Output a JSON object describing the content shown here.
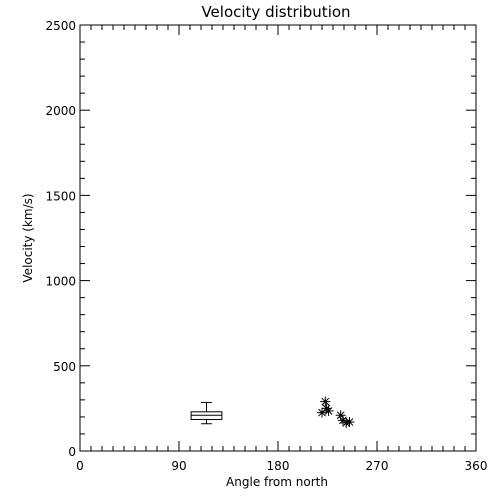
{
  "chart_data": {
    "type": "scatter",
    "title": "Velocity distribution",
    "xlabel": "Angle from north",
    "ylabel": "Velocity (km/s)",
    "xlim": [
      0,
      360
    ],
    "ylim": [
      0,
      2500
    ],
    "xticks": [
      0,
      90,
      180,
      270,
      360
    ],
    "yticks": [
      0,
      500,
      1000,
      1500,
      2000,
      2500
    ],
    "x_minor_interval": 10,
    "y_minor_interval": 100,
    "grid": false,
    "legend": "none",
    "colors": {
      "foreground": "#000000",
      "background": "#ffffff"
    },
    "boxplot": {
      "x": 115,
      "half_width_degrees": 14,
      "whisker_low": 160,
      "q1": 185,
      "median": 210,
      "q3": 230,
      "whisker_high": 285
    },
    "points": [
      {
        "x": 220,
        "y": 225
      },
      {
        "x": 223,
        "y": 290
      },
      {
        "x": 224,
        "y": 250
      },
      {
        "x": 226,
        "y": 235
      },
      {
        "x": 237,
        "y": 210
      },
      {
        "x": 239,
        "y": 180
      },
      {
        "x": 242,
        "y": 165
      },
      {
        "x": 245,
        "y": 170
      }
    ],
    "marker": "asterisk"
  }
}
